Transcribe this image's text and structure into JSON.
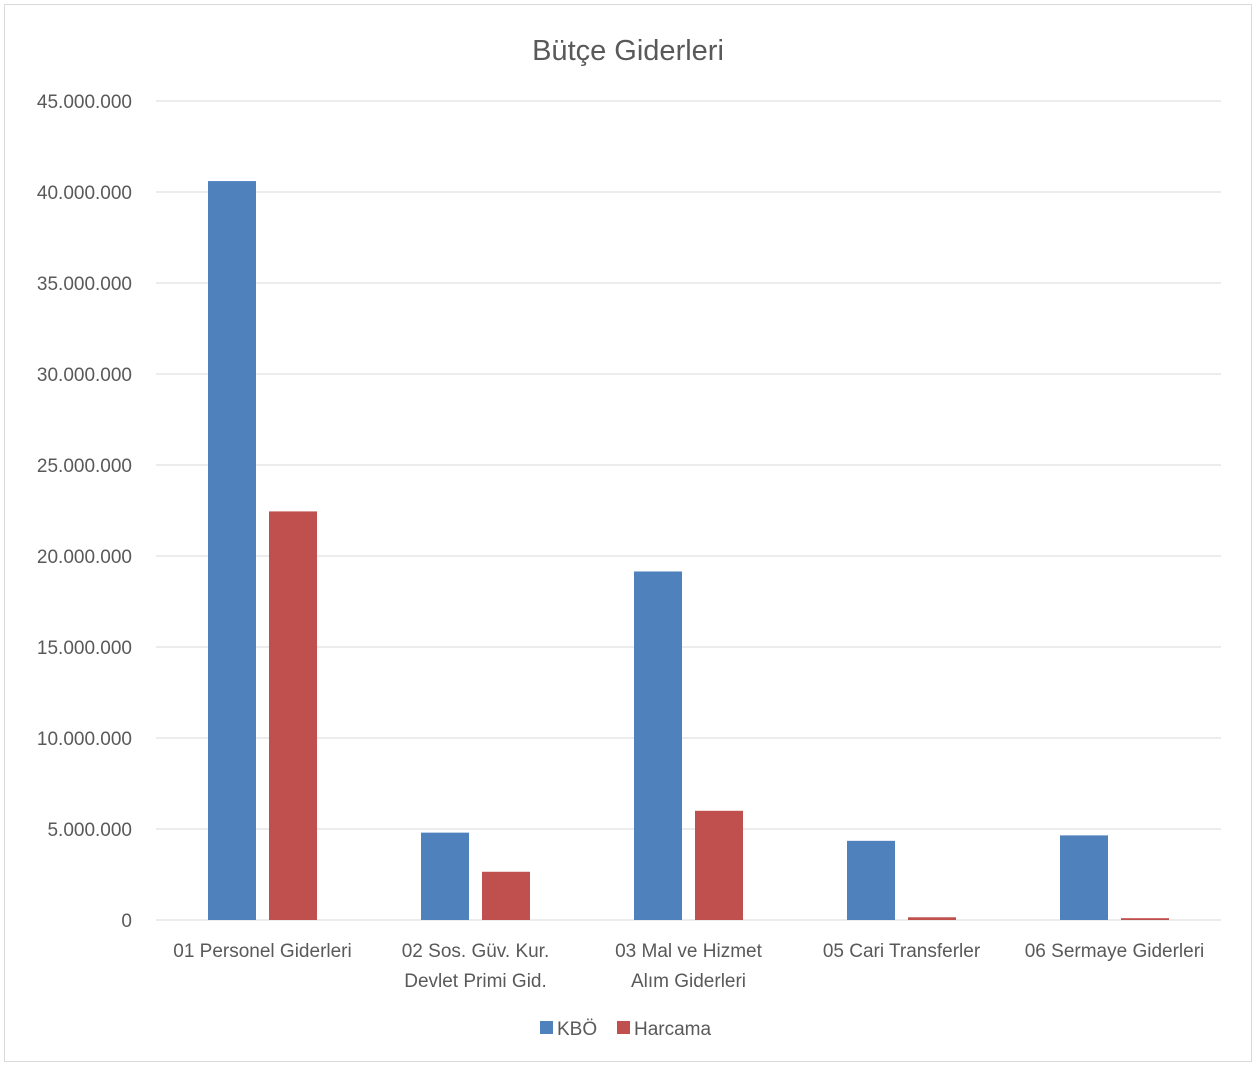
{
  "chart_data": {
    "type": "bar",
    "title": "Bütçe Giderleri",
    "xlabel": "",
    "ylabel": "",
    "categories": [
      [
        "01 Personel Giderleri"
      ],
      [
        "02 Sos. Güv. Kur.",
        "Devlet Primi Gid."
      ],
      [
        "03 Mal ve Hizmet",
        "Alım Giderleri"
      ],
      [
        "05 Cari Transferler"
      ],
      [
        "06 Sermaye Giderleri"
      ]
    ],
    "series": [
      {
        "name": "KBÖ",
        "color": "#4f81bd",
        "values": [
          40600000,
          4800000,
          19150000,
          4350000,
          4650000
        ]
      },
      {
        "name": "Harcama",
        "color": "#c0504d",
        "values": [
          22450000,
          2650000,
          6000000,
          150000,
          100000
        ]
      }
    ],
    "ylim": [
      0,
      45000000
    ],
    "yticks": [
      0,
      5000000,
      10000000,
      15000000,
      20000000,
      25000000,
      30000000,
      35000000,
      40000000,
      45000000
    ],
    "ytick_labels": [
      "0",
      "5.000.000",
      "10.000.000",
      "15.000.000",
      "20.000.000",
      "25.000.000",
      "30.000.000",
      "35.000.000",
      "40.000.000",
      "45.000.000"
    ],
    "grid": true,
    "legend_position": "bottom"
  }
}
